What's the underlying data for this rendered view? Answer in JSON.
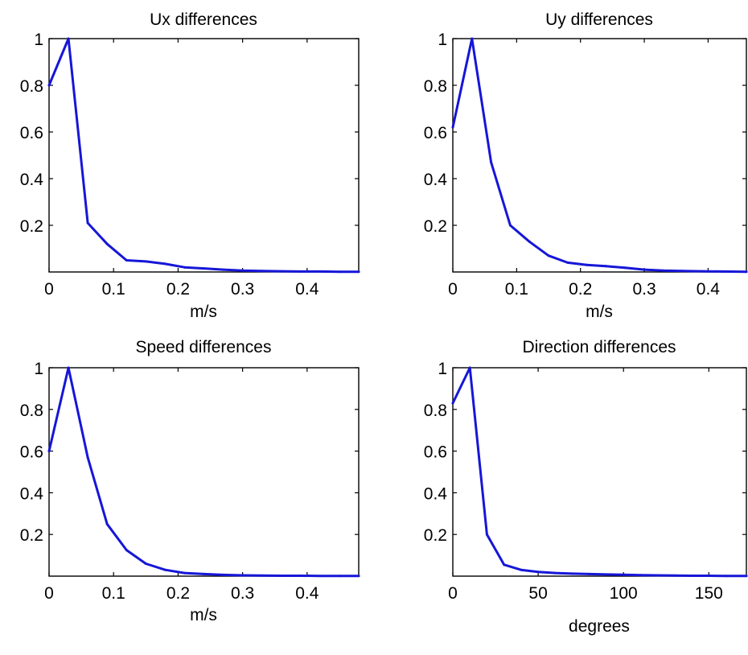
{
  "style": {
    "line_color": "#1616d8",
    "axis_color": "#000000",
    "background": "#ffffff"
  },
  "chart_data": [
    {
      "type": "line",
      "title": "Ux differences",
      "xlabel": "m/s",
      "ylabel": "",
      "xlim": [
        0,
        0.48
      ],
      "ylim": [
        0,
        1
      ],
      "grid": false,
      "x_ticks": [
        0,
        0.1,
        0.2,
        0.3,
        0.4
      ],
      "x_tick_labels": [
        "0",
        "0.1",
        "0.2",
        "0.3",
        "0.4"
      ],
      "y_ticks": [
        0.2,
        0.4,
        0.6,
        0.8,
        1
      ],
      "y_tick_labels": [
        "0.2",
        "0.4",
        "0.6",
        "0.8",
        "1"
      ],
      "series": [
        {
          "x": [
            0,
            0.03,
            0.06,
            0.09,
            0.12,
            0.15,
            0.18,
            0.21,
            0.24,
            0.27,
            0.3,
            0.33,
            0.36,
            0.39,
            0.42,
            0.45,
            0.48
          ],
          "y": [
            0.8,
            1.0,
            0.21,
            0.12,
            0.05,
            0.045,
            0.035,
            0.02,
            0.015,
            0.01,
            0.006,
            0.004,
            0.003,
            0.002,
            0.002,
            0.001,
            0.001
          ]
        }
      ]
    },
    {
      "type": "line",
      "title": "Uy differences",
      "xlabel": "m/s",
      "ylabel": "",
      "xlim": [
        0,
        0.46
      ],
      "ylim": [
        0,
        1
      ],
      "grid": false,
      "x_ticks": [
        0,
        0.1,
        0.2,
        0.3,
        0.4
      ],
      "x_tick_labels": [
        "0",
        "0.1",
        "0.2",
        "0.3",
        "0.4"
      ],
      "y_ticks": [
        0.2,
        0.4,
        0.6,
        0.8,
        1
      ],
      "y_tick_labels": [
        "0.2",
        "0.4",
        "0.6",
        "0.8",
        "1"
      ],
      "series": [
        {
          "x": [
            0,
            0.03,
            0.06,
            0.09,
            0.12,
            0.15,
            0.18,
            0.21,
            0.24,
            0.27,
            0.3,
            0.33,
            0.36,
            0.39,
            0.42,
            0.46
          ],
          "y": [
            0.62,
            1.0,
            0.47,
            0.2,
            0.13,
            0.07,
            0.04,
            0.03,
            0.025,
            0.018,
            0.01,
            0.006,
            0.004,
            0.003,
            0.002,
            0.001
          ]
        }
      ]
    },
    {
      "type": "line",
      "title": "Speed differences",
      "xlabel": "m/s",
      "ylabel": "",
      "xlim": [
        0,
        0.48
      ],
      "ylim": [
        0,
        1
      ],
      "grid": false,
      "x_ticks": [
        0,
        0.1,
        0.2,
        0.3,
        0.4
      ],
      "x_tick_labels": [
        "0",
        "0.1",
        "0.2",
        "0.3",
        "0.4"
      ],
      "y_ticks": [
        0.2,
        0.4,
        0.6,
        0.8,
        1
      ],
      "y_tick_labels": [
        "0.2",
        "0.4",
        "0.6",
        "0.8",
        "1"
      ],
      "series": [
        {
          "x": [
            0,
            0.03,
            0.06,
            0.09,
            0.12,
            0.15,
            0.18,
            0.21,
            0.24,
            0.27,
            0.3,
            0.33,
            0.36,
            0.39,
            0.42,
            0.45,
            0.48
          ],
          "y": [
            0.6,
            1.0,
            0.57,
            0.25,
            0.125,
            0.06,
            0.03,
            0.015,
            0.01,
            0.006,
            0.004,
            0.003,
            0.002,
            0.002,
            0.001,
            0.001,
            0.001
          ]
        }
      ]
    },
    {
      "type": "line",
      "title": "Direction differences",
      "xlabel": "degrees",
      "ylabel": "",
      "xlim": [
        0,
        172
      ],
      "ylim": [
        0,
        1
      ],
      "grid": false,
      "x_ticks": [
        0,
        50,
        100,
        150
      ],
      "x_tick_labels": [
        "0",
        "50",
        "100",
        "150"
      ],
      "y_ticks": [
        0.2,
        0.4,
        0.6,
        0.8,
        1
      ],
      "y_tick_labels": [
        "0.2",
        "0.4",
        "0.6",
        "0.8",
        "1"
      ],
      "series": [
        {
          "x": [
            0,
            10,
            20,
            30,
            40,
            50,
            60,
            70,
            80,
            90,
            100,
            110,
            120,
            130,
            140,
            150,
            160,
            172
          ],
          "y": [
            0.83,
            1.0,
            0.2,
            0.055,
            0.03,
            0.02,
            0.015,
            0.012,
            0.01,
            0.008,
            0.007,
            0.005,
            0.004,
            0.003,
            0.002,
            0.002,
            0.001,
            0.001
          ]
        }
      ]
    }
  ]
}
